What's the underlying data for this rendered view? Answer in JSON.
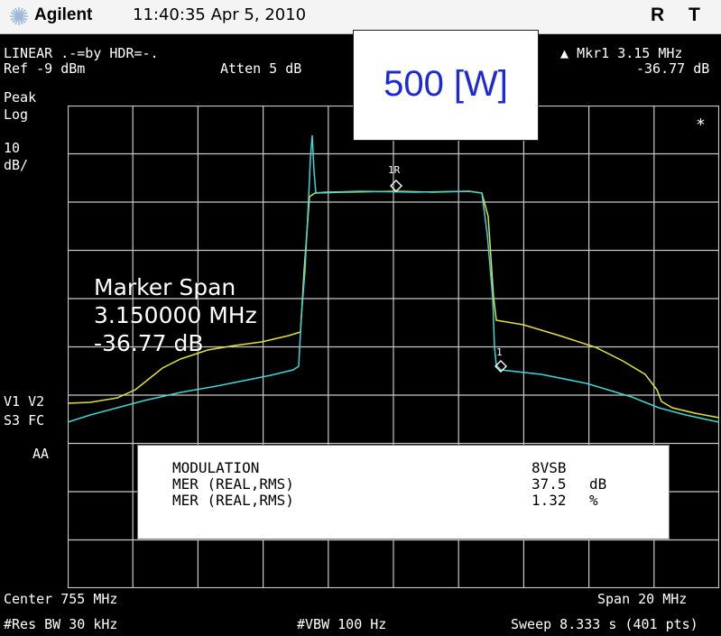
{
  "titlebar": {
    "brand": "Agilent",
    "datetime": "11:40:35  Apr 5, 2010",
    "right_labels": [
      "R",
      "T"
    ]
  },
  "header": {
    "line1_left": "LINEAR .-=by HDR=-.",
    "ref_level": "Ref -9 dBm",
    "attenuation": "Atten 5 dB",
    "marker_label": "Mkr1  3.15 MHz",
    "marker_value": "-36.77 dB"
  },
  "left_labels": {
    "detector": "Peak",
    "scale_type": "Log",
    "scale_value": "10",
    "scale_unit": "dB/",
    "v_row": "V1  V2",
    "s_row": "S3  FC",
    "aa": "AA"
  },
  "star": "*",
  "power_label": "500 [W]",
  "marker_span": {
    "title": "Marker Span",
    "frequency": "3.150000 MHz",
    "level": "-36.77 dB"
  },
  "marker_tags": {
    "ref": "1R",
    "delta": "1"
  },
  "mer_panel": {
    "rows": [
      {
        "label": "MODULATION",
        "value": "8VSB",
        "unit": ""
      },
      {
        "label": "MER (REAL,RMS)",
        "value": "37.5",
        "unit": "dB"
      },
      {
        "label": "MER (REAL,RMS)",
        "value": "1.32",
        "unit": "%"
      }
    ]
  },
  "footer": {
    "center": "Center 755 MHz",
    "span": "Span 20 MHz",
    "res_bw": "#Res BW 30 kHz",
    "vbw": "#VBW 100 Hz",
    "sweep": "Sweep 8.333 s (401 pts)"
  },
  "colors": {
    "trace_cyan": "#3fd6d6",
    "trace_yellow": "#e2e23a",
    "power_text": "#1b2ad6",
    "grid": "#c8c8c8"
  }
}
